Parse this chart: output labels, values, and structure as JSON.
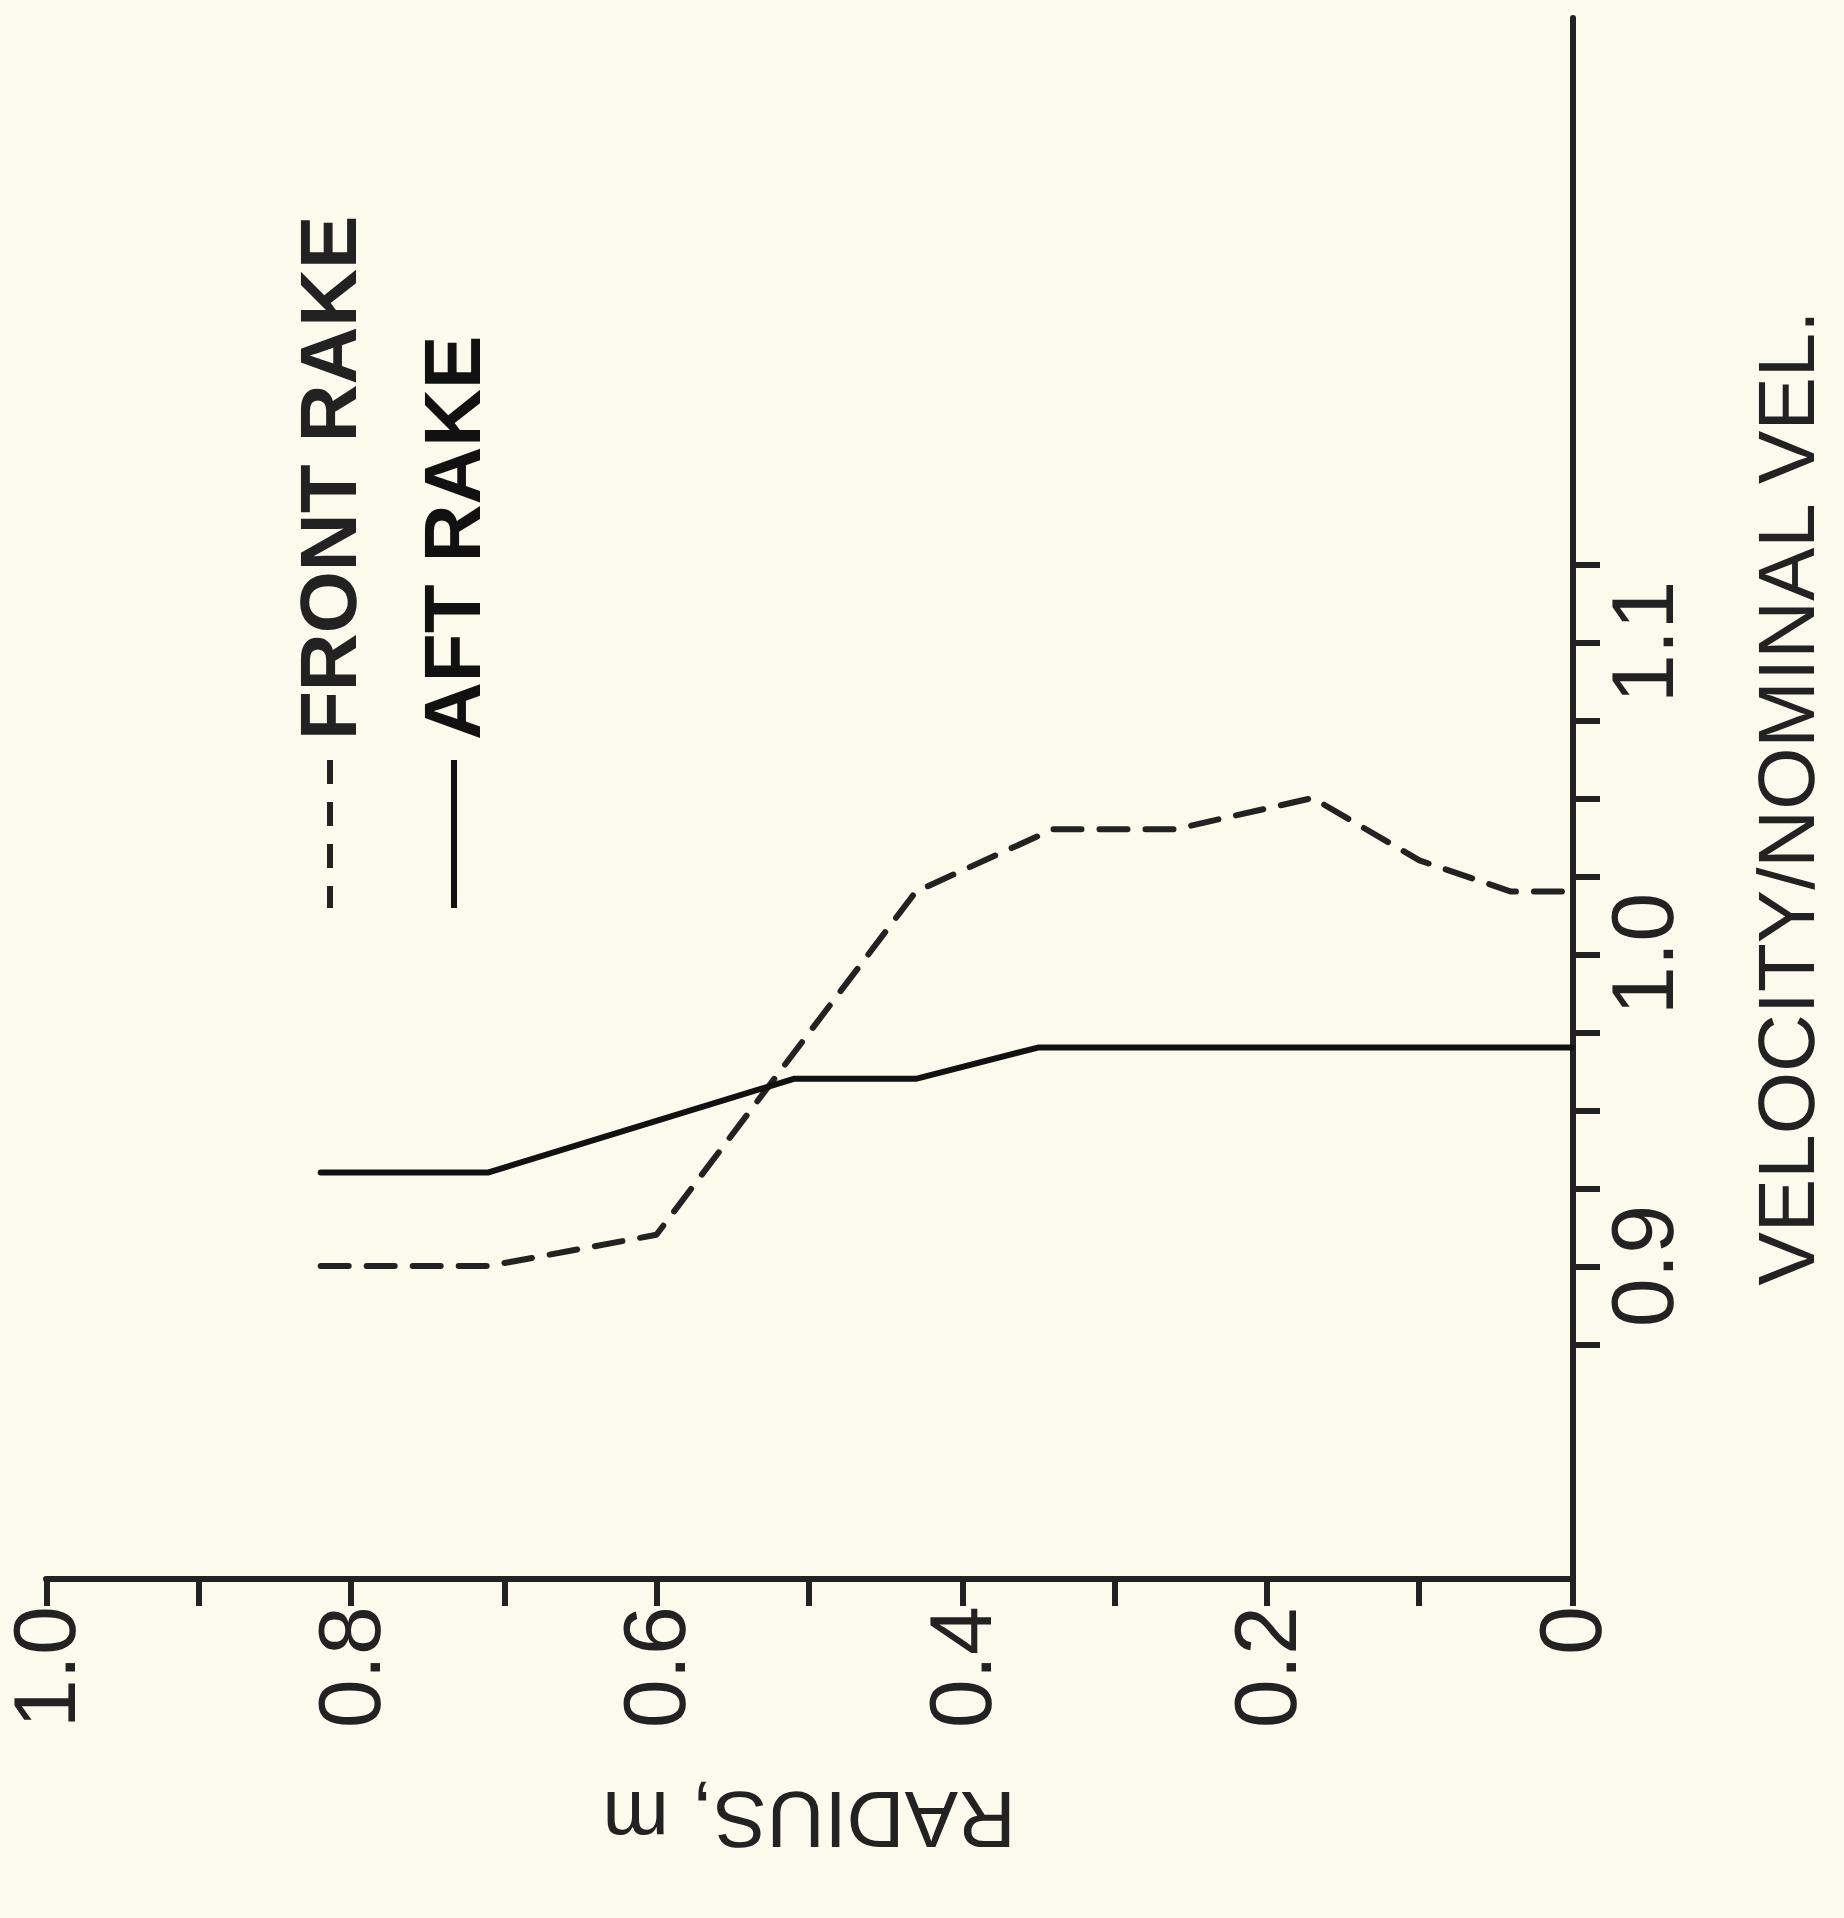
{
  "chart_data": {
    "type": "line",
    "xlabel": "RADIUS, m",
    "ylabel": "VELOCITY/NOMINAL VEL.",
    "xlim": [
      1.0,
      0
    ],
    "ylim": [
      0.8,
      1.3
    ],
    "xticks": [
      {
        "value": 1.0,
        "label": "1.0"
      },
      {
        "value": 0.9,
        "label": null
      },
      {
        "value": 0.8,
        "label": "0.8"
      },
      {
        "value": 0.7,
        "label": null
      },
      {
        "value": 0.6,
        "label": "0.6"
      },
      {
        "value": 0.5,
        "label": null
      },
      {
        "value": 0.4,
        "label": "0.4"
      },
      {
        "value": 0.3,
        "label": null
      },
      {
        "value": 0.2,
        "label": "0.2"
      },
      {
        "value": 0.1,
        "label": null
      },
      {
        "value": 0,
        "label": "0"
      }
    ],
    "yticks": [
      {
        "value": 0.875,
        "label": null
      },
      {
        "value": 0.9,
        "label": "0.9"
      },
      {
        "value": 0.925,
        "label": null
      },
      {
        "value": 0.95,
        "label": null
      },
      {
        "value": 0.975,
        "label": null
      },
      {
        "value": 1.0,
        "label": "1.0"
      },
      {
        "value": 1.025,
        "label": null
      },
      {
        "value": 1.05,
        "label": null
      },
      {
        "value": 1.075,
        "label": null
      },
      {
        "value": 1.1,
        "label": "1.1"
      },
      {
        "value": 1.125,
        "label": null
      }
    ],
    "series": [
      {
        "name": "FRONT RAKE",
        "color": "#222222",
        "line_style": "dashed",
        "x": [
          0.82,
          0.71,
          0.6,
          0.43,
          0.34,
          0.26,
          0.17,
          0.1,
          0.04,
          0
        ],
        "values": [
          0.9,
          0.9,
          0.91,
          1.02,
          1.04,
          1.04,
          1.05,
          1.03,
          1.02,
          1.02
        ]
      },
      {
        "name": "AFT RAKE",
        "color": "#111111",
        "line_style": "solid",
        "x": [
          0.82,
          0.71,
          0.51,
          0.43,
          0.35,
          0
        ],
        "values": [
          0.93,
          0.93,
          0.96,
          0.96,
          0.97,
          0.97
        ]
      }
    ],
    "grid": false,
    "legend": "top left",
    "marker": "none"
  }
}
